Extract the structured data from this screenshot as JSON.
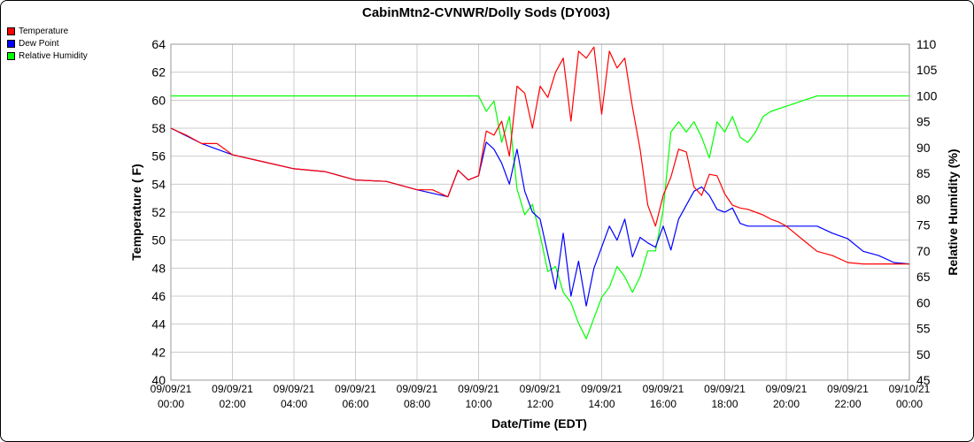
{
  "chart_data": {
    "type": "line",
    "title": "CabinMtn2-CVNWR/Dolly Sods (DY003)",
    "xlabel": "Date/Time (EDT)",
    "ylabel_left": "Temperature ( F)",
    "ylabel_right": "Relative Humidity (%)",
    "ylim_left": [
      40,
      64
    ],
    "ylim_right": [
      45,
      110
    ],
    "yticks_left": [
      "40",
      "42",
      "44",
      "46",
      "48",
      "50",
      "52",
      "54",
      "56",
      "58",
      "60",
      "62",
      "64"
    ],
    "yticks_right": [
      "45",
      "50",
      "55",
      "60",
      "65",
      "70",
      "75",
      "80",
      "85",
      "90",
      "95",
      "100",
      "105",
      "110"
    ],
    "x_ticks": [
      {
        "date": "09/09/21",
        "time": "00:00"
      },
      {
        "date": "09/09/21",
        "time": "02:00"
      },
      {
        "date": "09/09/21",
        "time": "04:00"
      },
      {
        "date": "09/09/21",
        "time": "06:00"
      },
      {
        "date": "09/09/21",
        "time": "08:00"
      },
      {
        "date": "09/09/21",
        "time": "10:00"
      },
      {
        "date": "09/09/21",
        "time": "12:00"
      },
      {
        "date": "09/09/21",
        "time": "14:00"
      },
      {
        "date": "09/09/21",
        "time": "16:00"
      },
      {
        "date": "09/09/21",
        "time": "18:00"
      },
      {
        "date": "09/09/21",
        "time": "20:00"
      },
      {
        "date": "09/09/21",
        "time": "22:00"
      },
      {
        "date": "09/10/21",
        "time": "00:00"
      }
    ],
    "grid": true,
    "legend_position": "top-left",
    "series": [
      {
        "name": "Temperature",
        "color": "#ff0000",
        "axis": "left",
        "x": [
          "09/09/21 00:00",
          "09/09/21 00:30",
          "09/09/21 01:00",
          "09/09/21 01:30",
          "09/09/21 02:00",
          "09/09/21 03:00",
          "09/09/21 04:00",
          "09/09/21 05:00",
          "09/09/21 06:00",
          "09/09/21 07:00",
          "09/09/21 07:20",
          "09/09/21 08:00",
          "09/09/21 08:30",
          "09/09/21 09:00",
          "09/09/21 09:20",
          "09/09/21 09:40",
          "09/09/21 10:00",
          "09/09/21 10:15",
          "09/09/21 10:30",
          "09/09/21 10:45",
          "09/09/21 11:00",
          "09/09/21 11:15",
          "09/09/21 11:30",
          "09/09/21 11:45",
          "09/09/21 12:00",
          "09/09/21 12:15",
          "09/09/21 12:30",
          "09/09/21 12:45",
          "09/09/21 13:00",
          "09/09/21 13:15",
          "09/09/21 13:30",
          "09/09/21 13:45",
          "09/09/21 14:00",
          "09/09/21 14:15",
          "09/09/21 14:30",
          "09/09/21 14:45",
          "09/09/21 15:00",
          "09/09/21 15:15",
          "09/09/21 15:30",
          "09/09/21 15:45",
          "09/09/21 16:00",
          "09/09/21 16:15",
          "09/09/21 16:30",
          "09/09/21 16:45",
          "09/09/21 17:00",
          "09/09/21 17:15",
          "09/09/21 17:30",
          "09/09/21 17:45",
          "09/09/21 18:00",
          "09/09/21 18:15",
          "09/09/21 18:30",
          "09/09/21 18:45",
          "09/09/21 19:00",
          "09/09/21 19:15",
          "09/09/21 19:30",
          "09/09/21 19:45",
          "09/09/21 20:00",
          "09/09/21 20:30",
          "09/09/21 21:00",
          "09/09/21 21:30",
          "09/09/21 22:00",
          "09/09/21 22:30",
          "09/09/21 23:00",
          "09/09/21 23:30",
          "09/10/21 00:00"
        ],
        "values": [
          58.0,
          57.5,
          56.9,
          56.9,
          56.1,
          55.6,
          55.1,
          54.9,
          54.3,
          54.2,
          54.0,
          53.6,
          53.6,
          53.1,
          55.0,
          54.3,
          54.6,
          57.8,
          57.5,
          58.5,
          56.0,
          61.0,
          60.5,
          58.0,
          61.0,
          60.2,
          62.0,
          63.0,
          58.5,
          63.5,
          63.0,
          63.8,
          59.0,
          63.5,
          62.3,
          63.0,
          59.5,
          56.5,
          52.5,
          51.0,
          53.2,
          54.5,
          56.5,
          56.3,
          53.8,
          53.2,
          54.7,
          54.6,
          53.3,
          52.5,
          52.3,
          52.2,
          52.0,
          51.8,
          51.5,
          51.3,
          51.0,
          50.1,
          49.2,
          48.9,
          48.4,
          48.3,
          48.3,
          48.3,
          48.3
        ],
        "note": ""
      },
      {
        "name": "Dew Point",
        "color": "#0000ff",
        "axis": "left",
        "x": [
          "09/09/21 00:00",
          "09/09/21 01:00",
          "09/09/21 02:00",
          "09/09/21 03:00",
          "09/09/21 04:00",
          "09/09/21 05:00",
          "09/09/21 06:00",
          "09/09/21 07:00",
          "09/09/21 08:00",
          "09/09/21 09:00",
          "09/09/21 09:20",
          "09/09/21 09:40",
          "09/09/21 10:00",
          "09/09/21 10:15",
          "09/09/21 10:30",
          "09/09/21 10:45",
          "09/09/21 11:00",
          "09/09/21 11:15",
          "09/09/21 11:30",
          "09/09/21 11:45",
          "09/09/21 12:00",
          "09/09/21 12:15",
          "09/09/21 12:30",
          "09/09/21 12:45",
          "09/09/21 13:00",
          "09/09/21 13:15",
          "09/09/21 13:30",
          "09/09/21 13:45",
          "09/09/21 14:00",
          "09/09/21 14:15",
          "09/09/21 14:30",
          "09/09/21 14:45",
          "09/09/21 15:00",
          "09/09/21 15:15",
          "09/09/21 15:30",
          "09/09/21 15:45",
          "09/09/21 16:00",
          "09/09/21 16:15",
          "09/09/21 16:30",
          "09/09/21 16:45",
          "09/09/21 17:00",
          "09/09/21 17:15",
          "09/09/21 17:30",
          "09/09/21 17:45",
          "09/09/21 18:00",
          "09/09/21 18:15",
          "09/09/21 18:30",
          "09/09/21 18:45",
          "09/09/21 19:00",
          "09/09/21 19:30",
          "09/09/21 20:00",
          "09/09/21 20:30",
          "09/09/21 21:00",
          "09/09/21 21:30",
          "09/09/21 22:00",
          "09/09/21 22:30",
          "09/09/21 23:00",
          "09/09/21 23:30",
          "09/10/21 00:00"
        ],
        "values": [
          58.0,
          56.9,
          56.1,
          55.6,
          55.1,
          54.9,
          54.3,
          54.2,
          53.6,
          53.1,
          55.0,
          54.3,
          54.6,
          57.0,
          56.5,
          55.5,
          54.0,
          56.5,
          53.5,
          52.0,
          51.5,
          49.0,
          46.5,
          50.5,
          46.0,
          48.5,
          45.3,
          48.0,
          49.5,
          51.0,
          50.0,
          51.5,
          48.8,
          50.2,
          49.8,
          49.5,
          51.0,
          49.3,
          51.5,
          52.5,
          53.5,
          53.8,
          53.2,
          52.2,
          52.0,
          52.3,
          51.2,
          51.0,
          51.0,
          51.0,
          51.0,
          51.0,
          51.0,
          50.5,
          50.1,
          49.2,
          48.9,
          48.4,
          48.3
        ]
      },
      {
        "name": "Relative Humidity",
        "color": "#00ff00",
        "axis": "right",
        "x": [
          "09/09/21 00:00",
          "09/09/21 10:00",
          "09/09/21 10:15",
          "09/09/21 10:30",
          "09/09/21 10:45",
          "09/09/21 11:00",
          "09/09/21 11:15",
          "09/09/21 11:30",
          "09/09/21 11:45",
          "09/09/21 12:00",
          "09/09/21 12:15",
          "09/09/21 12:30",
          "09/09/21 12:45",
          "09/09/21 13:00",
          "09/09/21 13:15",
          "09/09/21 13:30",
          "09/09/21 13:45",
          "09/09/21 14:00",
          "09/09/21 14:15",
          "09/09/21 14:30",
          "09/09/21 14:45",
          "09/09/21 15:00",
          "09/09/21 15:15",
          "09/09/21 15:30",
          "09/09/21 15:45",
          "09/09/21 16:00",
          "09/09/21 16:15",
          "09/09/21 16:30",
          "09/09/21 16:45",
          "09/09/21 17:00",
          "09/09/21 17:15",
          "09/09/21 17:30",
          "09/09/21 17:45",
          "09/09/21 18:00",
          "09/09/21 18:15",
          "09/09/21 18:30",
          "09/09/21 18:45",
          "09/09/21 19:00",
          "09/09/21 19:15",
          "09/09/21 19:30",
          "09/09/21 20:00",
          "09/09/21 20:30",
          "09/09/21 21:00",
          "09/09/21 21:30",
          "09/09/21 22:00",
          "09/09/21 23:00",
          "09/10/21 00:00"
        ],
        "values": [
          100,
          100,
          97,
          99,
          91,
          96,
          82,
          77,
          79,
          73,
          66,
          67,
          62,
          60,
          56,
          53,
          57,
          61,
          63,
          67,
          65,
          62,
          65,
          70,
          70,
          78,
          93,
          95,
          93,
          95,
          92,
          88,
          95,
          93,
          96,
          92,
          91,
          93,
          96,
          97,
          98,
          99,
          100,
          100,
          100,
          100,
          100
        ]
      }
    ]
  }
}
